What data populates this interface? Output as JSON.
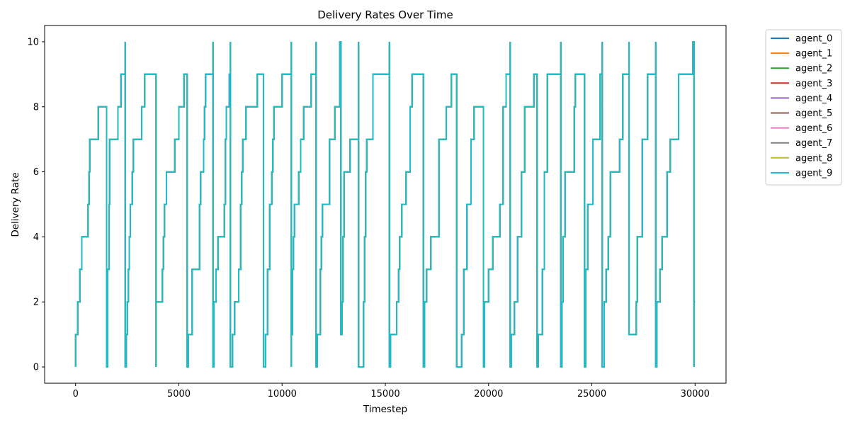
{
  "chart_data": {
    "type": "line",
    "title": "Delivery Rates Over Time",
    "xlabel": "Timestep",
    "ylabel": "Delivery Rate",
    "xlim": [
      -1500,
      31500
    ],
    "ylim": [
      -0.5,
      10.5
    ],
    "xticks": [
      0,
      5000,
      10000,
      15000,
      20000,
      25000,
      30000
    ],
    "yticks": [
      0,
      2,
      4,
      6,
      8,
      10
    ],
    "grid": false,
    "legend_position": "outside-top-right",
    "series": [
      {
        "name": "agent_0",
        "color": "#1f77b4"
      },
      {
        "name": "agent_1",
        "color": "#ff7f0e"
      },
      {
        "name": "agent_2",
        "color": "#2ca02c"
      },
      {
        "name": "agent_3",
        "color": "#d62728"
      },
      {
        "name": "agent_4",
        "color": "#9467bd"
      },
      {
        "name": "agent_5",
        "color": "#8c564b"
      },
      {
        "name": "agent_6",
        "color": "#e377c2"
      },
      {
        "name": "agent_7",
        "color": "#7f7f7f"
      },
      {
        "name": "agent_8",
        "color": "#bcbd22"
      },
      {
        "name": "agent_9",
        "color": "#17becf"
      }
    ],
    "points": [
      [
        0,
        0
      ],
      [
        0,
        1
      ],
      [
        100,
        1
      ],
      [
        100,
        2
      ],
      [
        200,
        2
      ],
      [
        200,
        3
      ],
      [
        300,
        3
      ],
      [
        300,
        4
      ],
      [
        600,
        4
      ],
      [
        600,
        5
      ],
      [
        650,
        5
      ],
      [
        650,
        6
      ],
      [
        680,
        6
      ],
      [
        680,
        7
      ],
      [
        1100,
        7
      ],
      [
        1100,
        8
      ],
      [
        1500,
        8
      ],
      [
        1500,
        0
      ],
      [
        1550,
        0
      ],
      [
        1550,
        3
      ],
      [
        1620,
        3
      ],
      [
        1620,
        5
      ],
      [
        1650,
        5
      ],
      [
        1650,
        7
      ],
      [
        2050,
        7
      ],
      [
        2050,
        8
      ],
      [
        2200,
        8
      ],
      [
        2200,
        9
      ],
      [
        2400,
        9
      ],
      [
        2400,
        10
      ],
      [
        2400,
        0
      ],
      [
        2450,
        0
      ],
      [
        2450,
        1
      ],
      [
        2500,
        1
      ],
      [
        2500,
        2
      ],
      [
        2550,
        2
      ],
      [
        2550,
        3
      ],
      [
        2600,
        3
      ],
      [
        2600,
        4
      ],
      [
        2650,
        4
      ],
      [
        2650,
        5
      ],
      [
        2750,
        5
      ],
      [
        2750,
        6
      ],
      [
        2800,
        6
      ],
      [
        2800,
        7
      ],
      [
        3200,
        7
      ],
      [
        3200,
        8
      ],
      [
        3350,
        8
      ],
      [
        3350,
        9
      ],
      [
        3900,
        9
      ],
      [
        3900,
        0
      ],
      [
        3900,
        2
      ],
      [
        4200,
        2
      ],
      [
        4200,
        3
      ],
      [
        4250,
        3
      ],
      [
        4250,
        4
      ],
      [
        4300,
        4
      ],
      [
        4300,
        5
      ],
      [
        4400,
        5
      ],
      [
        4400,
        6
      ],
      [
        4800,
        6
      ],
      [
        4800,
        7
      ],
      [
        5000,
        7
      ],
      [
        5000,
        8
      ],
      [
        5250,
        8
      ],
      [
        5250,
        9
      ],
      [
        5400,
        9
      ],
      [
        5400,
        0
      ],
      [
        5450,
        0
      ],
      [
        5450,
        1
      ],
      [
        5650,
        1
      ],
      [
        5650,
        3
      ],
      [
        6000,
        3
      ],
      [
        6000,
        5
      ],
      [
        6050,
        5
      ],
      [
        6050,
        6
      ],
      [
        6200,
        6
      ],
      [
        6200,
        7
      ],
      [
        6250,
        7
      ],
      [
        6250,
        8
      ],
      [
        6300,
        8
      ],
      [
        6300,
        9
      ],
      [
        6650,
        9
      ],
      [
        6650,
        10
      ],
      [
        6650,
        0
      ],
      [
        6700,
        0
      ],
      [
        6700,
        2
      ],
      [
        6800,
        2
      ],
      [
        6800,
        3
      ],
      [
        6900,
        3
      ],
      [
        6900,
        4
      ],
      [
        7200,
        4
      ],
      [
        7200,
        5
      ],
      [
        7250,
        5
      ],
      [
        7250,
        7
      ],
      [
        7300,
        7
      ],
      [
        7300,
        8
      ],
      [
        7450,
        8
      ],
      [
        7450,
        9
      ],
      [
        7500,
        9
      ],
      [
        7500,
        10
      ],
      [
        7500,
        0
      ],
      [
        7600,
        0
      ],
      [
        7600,
        1
      ],
      [
        7700,
        1
      ],
      [
        7700,
        2
      ],
      [
        7900,
        2
      ],
      [
        7900,
        3
      ],
      [
        8000,
        3
      ],
      [
        8000,
        5
      ],
      [
        8050,
        5
      ],
      [
        8050,
        6
      ],
      [
        8100,
        6
      ],
      [
        8100,
        7
      ],
      [
        8250,
        7
      ],
      [
        8250,
        8
      ],
      [
        8800,
        8
      ],
      [
        8800,
        9
      ],
      [
        9100,
        9
      ],
      [
        9100,
        0
      ],
      [
        9200,
        0
      ],
      [
        9200,
        1
      ],
      [
        9300,
        1
      ],
      [
        9300,
        3
      ],
      [
        9400,
        3
      ],
      [
        9400,
        5
      ],
      [
        9500,
        5
      ],
      [
        9500,
        6
      ],
      [
        9550,
        6
      ],
      [
        9550,
        7
      ],
      [
        9600,
        7
      ],
      [
        9600,
        8
      ],
      [
        10000,
        8
      ],
      [
        10000,
        9
      ],
      [
        10450,
        9
      ],
      [
        10450,
        10
      ],
      [
        10450,
        0
      ],
      [
        10450,
        1
      ],
      [
        10500,
        1
      ],
      [
        10500,
        3
      ],
      [
        10550,
        3
      ],
      [
        10550,
        4
      ],
      [
        10600,
        4
      ],
      [
        10600,
        5
      ],
      [
        10800,
        5
      ],
      [
        10800,
        6
      ],
      [
        10900,
        6
      ],
      [
        10900,
        7
      ],
      [
        11050,
        7
      ],
      [
        11050,
        8
      ],
      [
        11400,
        8
      ],
      [
        11400,
        9
      ],
      [
        11650,
        9
      ],
      [
        11650,
        10
      ],
      [
        11650,
        0
      ],
      [
        11700,
        0
      ],
      [
        11700,
        1
      ],
      [
        11850,
        1
      ],
      [
        11850,
        3
      ],
      [
        11900,
        3
      ],
      [
        11900,
        4
      ],
      [
        11950,
        4
      ],
      [
        11950,
        5
      ],
      [
        12300,
        5
      ],
      [
        12300,
        7
      ],
      [
        12550,
        7
      ],
      [
        12550,
        8
      ],
      [
        12800,
        8
      ],
      [
        12800,
        10
      ],
      [
        12850,
        10
      ],
      [
        12850,
        1
      ],
      [
        12900,
        1
      ],
      [
        12900,
        2
      ],
      [
        12950,
        2
      ],
      [
        12950,
        4
      ],
      [
        13000,
        4
      ],
      [
        13000,
        6
      ],
      [
        13300,
        6
      ],
      [
        13300,
        7
      ],
      [
        13700,
        7
      ],
      [
        13700,
        10
      ],
      [
        13700,
        0
      ],
      [
        13950,
        0
      ],
      [
        13950,
        2
      ],
      [
        14000,
        2
      ],
      [
        14000,
        4
      ],
      [
        14050,
        4
      ],
      [
        14050,
        6
      ],
      [
        14100,
        6
      ],
      [
        14100,
        7
      ],
      [
        14400,
        7
      ],
      [
        14400,
        9
      ],
      [
        15200,
        9
      ],
      [
        15200,
        10
      ],
      [
        15200,
        0
      ],
      [
        15250,
        0
      ],
      [
        15250,
        1
      ],
      [
        15550,
        1
      ],
      [
        15550,
        2
      ],
      [
        15650,
        2
      ],
      [
        15650,
        3
      ],
      [
        15700,
        3
      ],
      [
        15700,
        4
      ],
      [
        15800,
        4
      ],
      [
        15800,
        5
      ],
      [
        16000,
        5
      ],
      [
        16000,
        6
      ],
      [
        16200,
        6
      ],
      [
        16200,
        8
      ],
      [
        16300,
        8
      ],
      [
        16300,
        9
      ],
      [
        16850,
        9
      ],
      [
        16850,
        0
      ],
      [
        16900,
        0
      ],
      [
        16900,
        2
      ],
      [
        17000,
        2
      ],
      [
        17000,
        3
      ],
      [
        17200,
        3
      ],
      [
        17200,
        4
      ],
      [
        17600,
        4
      ],
      [
        17600,
        7
      ],
      [
        17950,
        7
      ],
      [
        17950,
        8
      ],
      [
        18200,
        8
      ],
      [
        18200,
        9
      ],
      [
        18450,
        9
      ],
      [
        18450,
        0
      ],
      [
        18700,
        0
      ],
      [
        18700,
        1
      ],
      [
        18800,
        1
      ],
      [
        18800,
        3
      ],
      [
        18950,
        3
      ],
      [
        18950,
        5
      ],
      [
        19150,
        5
      ],
      [
        19150,
        7
      ],
      [
        19300,
        7
      ],
      [
        19300,
        8
      ],
      [
        19750,
        8
      ],
      [
        19750,
        0
      ],
      [
        19800,
        0
      ],
      [
        19800,
        2
      ],
      [
        20000,
        2
      ],
      [
        20000,
        3
      ],
      [
        20200,
        3
      ],
      [
        20200,
        4
      ],
      [
        20550,
        4
      ],
      [
        20550,
        5
      ],
      [
        20700,
        5
      ],
      [
        20700,
        8
      ],
      [
        20850,
        8
      ],
      [
        20850,
        9
      ],
      [
        21050,
        9
      ],
      [
        21050,
        10
      ],
      [
        21050,
        0
      ],
      [
        21100,
        0
      ],
      [
        21100,
        1
      ],
      [
        21250,
        1
      ],
      [
        21250,
        2
      ],
      [
        21400,
        2
      ],
      [
        21400,
        4
      ],
      [
        21600,
        4
      ],
      [
        21600,
        6
      ],
      [
        21750,
        6
      ],
      [
        21750,
        8
      ],
      [
        22200,
        8
      ],
      [
        22200,
        9
      ],
      [
        22350,
        9
      ],
      [
        22350,
        0
      ],
      [
        22400,
        0
      ],
      [
        22400,
        1
      ],
      [
        22600,
        1
      ],
      [
        22600,
        3
      ],
      [
        22700,
        3
      ],
      [
        22700,
        6
      ],
      [
        22850,
        6
      ],
      [
        22850,
        9
      ],
      [
        23500,
        9
      ],
      [
        23500,
        10
      ],
      [
        23500,
        0
      ],
      [
        23550,
        0
      ],
      [
        23550,
        2
      ],
      [
        23600,
        2
      ],
      [
        23600,
        4
      ],
      [
        23700,
        4
      ],
      [
        23700,
        6
      ],
      [
        24150,
        6
      ],
      [
        24150,
        8
      ],
      [
        24200,
        8
      ],
      [
        24200,
        9
      ],
      [
        24650,
        9
      ],
      [
        24650,
        0
      ],
      [
        24700,
        0
      ],
      [
        24700,
        3
      ],
      [
        24800,
        3
      ],
      [
        24800,
        5
      ],
      [
        25050,
        5
      ],
      [
        25050,
        7
      ],
      [
        25400,
        7
      ],
      [
        25400,
        9
      ],
      [
        25500,
        9
      ],
      [
        25500,
        10
      ],
      [
        25500,
        0
      ],
      [
        25600,
        0
      ],
      [
        25600,
        2
      ],
      [
        25700,
        2
      ],
      [
        25700,
        3
      ],
      [
        25800,
        3
      ],
      [
        25800,
        4
      ],
      [
        25900,
        4
      ],
      [
        25900,
        6
      ],
      [
        26350,
        6
      ],
      [
        26350,
        7
      ],
      [
        26500,
        7
      ],
      [
        26500,
        9
      ],
      [
        26800,
        9
      ],
      [
        26800,
        10
      ],
      [
        26800,
        1
      ],
      [
        27150,
        1
      ],
      [
        27150,
        2
      ],
      [
        27200,
        2
      ],
      [
        27200,
        4
      ],
      [
        27450,
        4
      ],
      [
        27450,
        7
      ],
      [
        27700,
        7
      ],
      [
        27700,
        9
      ],
      [
        28100,
        9
      ],
      [
        28100,
        10
      ],
      [
        28100,
        0
      ],
      [
        28150,
        0
      ],
      [
        28150,
        2
      ],
      [
        28300,
        2
      ],
      [
        28300,
        3
      ],
      [
        28400,
        3
      ],
      [
        28400,
        4
      ],
      [
        28650,
        4
      ],
      [
        28650,
        6
      ],
      [
        28800,
        6
      ],
      [
        28800,
        7
      ],
      [
        29200,
        7
      ],
      [
        29200,
        9
      ],
      [
        29900,
        9
      ],
      [
        29900,
        10
      ],
      [
        29950,
        10
      ],
      [
        29950,
        0
      ],
      [
        29950,
        2
      ],
      [
        30000,
        2
      ]
    ]
  }
}
